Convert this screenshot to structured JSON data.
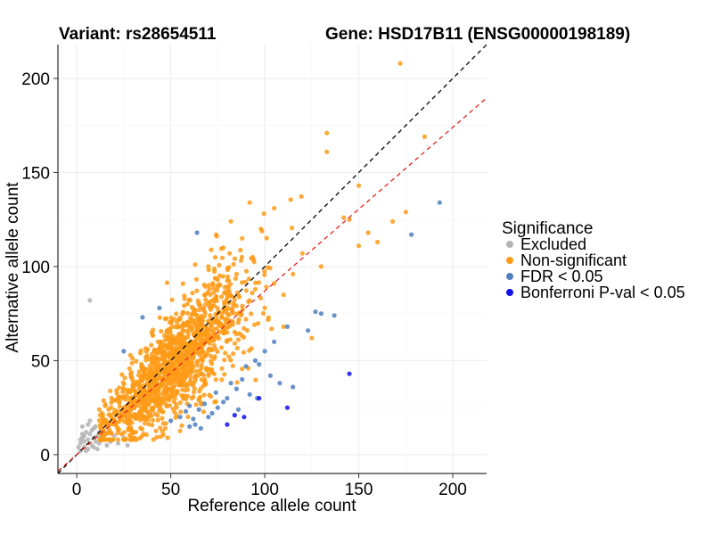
{
  "chart_data": {
    "type": "scatter",
    "title_left": "Variant: rs28654511",
    "title_right": "Gene: HSD17B11 (ENSG00000198189)",
    "xlabel": "Reference allele count",
    "ylabel": "Alternative allele count",
    "xlim": [
      -10,
      218
    ],
    "ylim": [
      -10,
      218
    ],
    "x_ticks": [
      0,
      50,
      100,
      150,
      200
    ],
    "y_ticks": [
      0,
      50,
      100,
      150,
      200
    ],
    "grid": true,
    "reference_lines": [
      {
        "name": "identity",
        "slope": 1.0,
        "intercept": 0,
        "color": "#000000",
        "dash": "dashed"
      },
      {
        "name": "fitted",
        "slope": 0.87,
        "intercept": 0,
        "color": "#e8221d",
        "dash": "dashed"
      }
    ],
    "legend": {
      "title": "Significance",
      "position": "right",
      "entries": [
        {
          "label": "Excluded",
          "color": "#b3b3b3"
        },
        {
          "label": "Non-significant",
          "color": "#ff9b17"
        },
        {
          "label": "FDR < 0.05",
          "color": "#4f7fbf"
        },
        {
          "label": "Bonferroni P-val < 0.05",
          "color": "#1212ee"
        }
      ]
    },
    "series": [
      {
        "name": "Excluded",
        "color": "#b3b3b3",
        "points": [
          [
            7,
            82
          ],
          [
            2,
            6
          ],
          [
            3,
            9
          ],
          [
            4,
            4
          ],
          [
            5,
            12
          ],
          [
            6,
            8
          ],
          [
            2,
            2
          ],
          [
            8,
            5
          ],
          [
            9,
            14
          ],
          [
            10,
            7
          ],
          [
            11,
            10
          ],
          [
            3,
            15
          ],
          [
            1,
            4
          ],
          [
            6,
            3
          ],
          [
            7,
            11
          ],
          [
            12,
            6
          ],
          [
            13,
            9
          ],
          [
            4,
            10
          ],
          [
            5,
            2
          ],
          [
            8,
            13
          ],
          [
            9,
            4
          ],
          [
            14,
            8
          ],
          [
            15,
            11
          ],
          [
            16,
            5
          ],
          [
            10,
            15
          ],
          [
            11,
            3
          ],
          [
            18,
            7
          ],
          [
            20,
            10
          ],
          [
            22,
            6
          ],
          [
            25,
            9
          ],
          [
            27,
            5
          ],
          [
            30,
            8
          ],
          [
            6,
            16
          ],
          [
            7,
            18
          ],
          [
            4,
            7
          ],
          [
            12,
            12
          ],
          [
            3,
            11
          ],
          [
            2,
            8
          ],
          [
            9,
            9
          ],
          [
            17,
            12
          ]
        ]
      },
      {
        "name": "Non-significant",
        "color": "#ff9b17",
        "points": [
          [
            172,
            208
          ],
          [
            133,
            171
          ],
          [
            185,
            169
          ],
          [
            133,
            161
          ],
          [
            150,
            143
          ],
          [
            145,
            125
          ],
          [
            155,
            118
          ],
          [
            160,
            113
          ],
          [
            150,
            111
          ],
          [
            175,
            129
          ],
          [
            168,
            124
          ],
          [
            142,
            126
          ],
          [
            130,
            100
          ],
          [
            120,
            107
          ],
          [
            115,
            96
          ],
          [
            110,
            85
          ],
          [
            105,
            91
          ],
          [
            100,
            78
          ],
          [
            95,
            88
          ],
          [
            90,
            72
          ],
          [
            85,
            96
          ],
          [
            80,
            65
          ],
          [
            78,
            110
          ],
          [
            75,
            90
          ],
          [
            70,
            60
          ],
          [
            65,
            80
          ],
          [
            60,
            55
          ],
          [
            55,
            72
          ],
          [
            50,
            45
          ],
          [
            45,
            60
          ],
          [
            40,
            38
          ],
          [
            35,
            47
          ],
          [
            30,
            28
          ],
          [
            25,
            35
          ],
          [
            20,
            22
          ],
          [
            15,
            18
          ],
          [
            12,
            24
          ],
          [
            98,
            120
          ],
          [
            92,
            134
          ],
          [
            105,
            131
          ],
          [
            82,
            124
          ],
          [
            88,
            115
          ],
          [
            70,
            100
          ],
          [
            110,
            68
          ],
          [
            125,
            62
          ],
          [
            60,
            48
          ],
          [
            62,
            38
          ],
          [
            50,
            35
          ]
        ],
        "cloud": {
          "count": 1400,
          "x_center": 52,
          "x_spread": 32,
          "slope": 0.92,
          "noise": 12
        }
      },
      {
        "name": "FDR < 0.05",
        "color": "#4f7fbf",
        "points": [
          [
            193,
            134
          ],
          [
            178,
            117
          ],
          [
            64,
            118
          ],
          [
            137,
            74
          ],
          [
            130,
            75
          ],
          [
            127,
            76
          ],
          [
            123,
            66
          ],
          [
            112,
            68
          ],
          [
            105,
            60
          ],
          [
            100,
            55
          ],
          [
            95,
            50
          ],
          [
            90,
            47
          ],
          [
            97,
            48
          ],
          [
            103,
            42
          ],
          [
            108,
            38
          ],
          [
            115,
            36
          ],
          [
            88,
            40
          ],
          [
            85,
            35
          ],
          [
            80,
            30
          ],
          [
            78,
            28
          ],
          [
            75,
            25
          ],
          [
            72,
            22
          ],
          [
            70,
            20
          ],
          [
            68,
            27
          ],
          [
            65,
            24
          ],
          [
            62,
            19
          ],
          [
            60,
            26
          ],
          [
            58,
            23
          ],
          [
            55,
            20
          ],
          [
            50,
            18
          ],
          [
            60,
            15
          ],
          [
            63,
            16
          ],
          [
            66,
            14
          ],
          [
            74,
            33
          ],
          [
            82,
            38
          ],
          [
            44,
            78
          ],
          [
            35,
            73
          ],
          [
            25,
            55
          ],
          [
            92,
            32
          ],
          [
            96,
            30
          ],
          [
            86,
            24
          ]
        ]
      },
      {
        "name": "Bonferroni P-val < 0.05",
        "color": "#1212ee",
        "points": [
          [
            145,
            43
          ],
          [
            112,
            25
          ],
          [
            97,
            30
          ],
          [
            89,
            20
          ],
          [
            84,
            21
          ],
          [
            80,
            16
          ]
        ]
      }
    ]
  }
}
